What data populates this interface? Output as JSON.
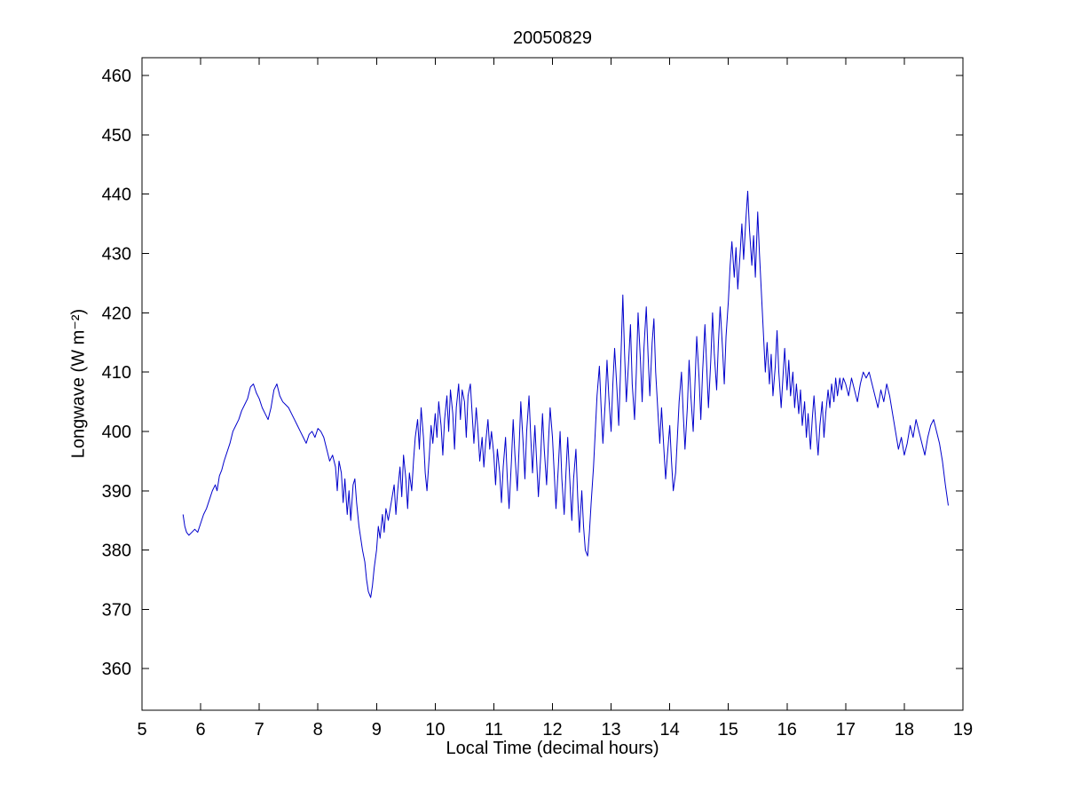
{
  "chart_data": {
    "type": "line",
    "title": "20050829",
    "xlabel": "Local Time (decimal hours)",
    "ylabel": "Longwave (W m⁻²)",
    "xlim": [
      5,
      19
    ],
    "ylim": [
      353,
      463
    ],
    "xticks": [
      5,
      6,
      7,
      8,
      9,
      10,
      11,
      12,
      13,
      14,
      15,
      16,
      17,
      18,
      19
    ],
    "yticks": [
      360,
      370,
      380,
      390,
      400,
      410,
      420,
      430,
      440,
      450,
      460
    ],
    "grid": false,
    "legend": "none",
    "line_color": "#0000CC",
    "series_name": "Longwave irradiance",
    "points": [
      [
        5.7,
        386
      ],
      [
        5.73,
        384
      ],
      [
        5.76,
        383
      ],
      [
        5.8,
        382.5
      ],
      [
        5.85,
        383
      ],
      [
        5.9,
        383.5
      ],
      [
        5.95,
        383
      ],
      [
        6.0,
        384.5
      ],
      [
        6.05,
        386
      ],
      [
        6.1,
        387
      ],
      [
        6.15,
        388.5
      ],
      [
        6.2,
        390
      ],
      [
        6.25,
        391
      ],
      [
        6.28,
        390
      ],
      [
        6.32,
        392.5
      ],
      [
        6.36,
        393.5
      ],
      [
        6.4,
        395
      ],
      [
        6.45,
        396.5
      ],
      [
        6.5,
        398
      ],
      [
        6.55,
        400
      ],
      [
        6.6,
        401
      ],
      [
        6.65,
        402
      ],
      [
        6.7,
        403.5
      ],
      [
        6.75,
        404.5
      ],
      [
        6.8,
        405.5
      ],
      [
        6.85,
        407.5
      ],
      [
        6.9,
        408
      ],
      [
        6.95,
        406.5
      ],
      [
        7.0,
        405.5
      ],
      [
        7.05,
        404
      ],
      [
        7.1,
        403
      ],
      [
        7.15,
        402
      ],
      [
        7.2,
        404
      ],
      [
        7.25,
        407
      ],
      [
        7.3,
        408
      ],
      [
        7.35,
        406
      ],
      [
        7.4,
        405
      ],
      [
        7.45,
        404.5
      ],
      [
        7.5,
        404
      ],
      [
        7.55,
        403
      ],
      [
        7.6,
        402
      ],
      [
        7.65,
        401
      ],
      [
        7.7,
        400
      ],
      [
        7.75,
        399
      ],
      [
        7.8,
        398
      ],
      [
        7.85,
        399.5
      ],
      [
        7.9,
        400
      ],
      [
        7.95,
        399
      ],
      [
        8.0,
        400.5
      ],
      [
        8.05,
        400
      ],
      [
        8.1,
        399
      ],
      [
        8.15,
        397
      ],
      [
        8.2,
        395
      ],
      [
        8.25,
        396
      ],
      [
        8.3,
        394
      ],
      [
        8.33,
        390
      ],
      [
        8.36,
        395
      ],
      [
        8.4,
        393
      ],
      [
        8.43,
        388
      ],
      [
        8.46,
        392
      ],
      [
        8.5,
        386
      ],
      [
        8.53,
        390
      ],
      [
        8.56,
        385
      ],
      [
        8.6,
        391
      ],
      [
        8.63,
        392
      ],
      [
        8.66,
        388
      ],
      [
        8.7,
        384
      ],
      [
        8.73,
        382
      ],
      [
        8.76,
        380
      ],
      [
        8.8,
        378
      ],
      [
        8.83,
        375
      ],
      [
        8.86,
        373
      ],
      [
        8.9,
        372
      ],
      [
        8.93,
        374
      ],
      [
        8.96,
        377
      ],
      [
        9.0,
        380
      ],
      [
        9.03,
        384
      ],
      [
        9.06,
        382
      ],
      [
        9.1,
        386
      ],
      [
        9.13,
        383
      ],
      [
        9.16,
        387
      ],
      [
        9.2,
        385
      ],
      [
        9.25,
        388
      ],
      [
        9.3,
        391
      ],
      [
        9.33,
        386
      ],
      [
        9.36,
        390
      ],
      [
        9.4,
        394
      ],
      [
        9.43,
        389
      ],
      [
        9.46,
        396
      ],
      [
        9.5,
        392
      ],
      [
        9.53,
        387
      ],
      [
        9.56,
        393
      ],
      [
        9.6,
        390
      ],
      [
        9.63,
        395
      ],
      [
        9.66,
        399
      ],
      [
        9.7,
        402
      ],
      [
        9.73,
        397
      ],
      [
        9.76,
        404
      ],
      [
        9.8,
        399
      ],
      [
        9.83,
        393
      ],
      [
        9.86,
        390
      ],
      [
        9.9,
        396
      ],
      [
        9.93,
        401
      ],
      [
        9.96,
        398
      ],
      [
        10.0,
        403
      ],
      [
        10.03,
        399
      ],
      [
        10.06,
        405
      ],
      [
        10.1,
        401
      ],
      [
        10.13,
        396
      ],
      [
        10.16,
        402
      ],
      [
        10.2,
        406
      ],
      [
        10.23,
        400
      ],
      [
        10.26,
        407
      ],
      [
        10.3,
        403
      ],
      [
        10.33,
        397
      ],
      [
        10.36,
        404
      ],
      [
        10.4,
        408
      ],
      [
        10.43,
        402
      ],
      [
        10.46,
        407
      ],
      [
        10.5,
        405
      ],
      [
        10.53,
        399
      ],
      [
        10.56,
        406
      ],
      [
        10.6,
        408
      ],
      [
        10.63,
        403
      ],
      [
        10.66,
        398
      ],
      [
        10.7,
        404
      ],
      [
        10.73,
        400
      ],
      [
        10.76,
        395
      ],
      [
        10.8,
        399
      ],
      [
        10.83,
        394
      ],
      [
        10.86,
        398
      ],
      [
        10.9,
        402
      ],
      [
        10.93,
        397
      ],
      [
        10.96,
        400
      ],
      [
        11.0,
        396
      ],
      [
        11.03,
        391
      ],
      [
        11.06,
        397
      ],
      [
        11.1,
        393
      ],
      [
        11.13,
        388
      ],
      [
        11.16,
        394
      ],
      [
        11.2,
        399
      ],
      [
        11.23,
        392
      ],
      [
        11.26,
        387
      ],
      [
        11.3,
        395
      ],
      [
        11.33,
        402
      ],
      [
        11.36,
        396
      ],
      [
        11.4,
        390
      ],
      [
        11.43,
        397
      ],
      [
        11.46,
        405
      ],
      [
        11.5,
        398
      ],
      [
        11.53,
        392
      ],
      [
        11.56,
        400
      ],
      [
        11.6,
        406
      ],
      [
        11.63,
        399
      ],
      [
        11.66,
        393
      ],
      [
        11.7,
        401
      ],
      [
        11.73,
        395
      ],
      [
        11.76,
        389
      ],
      [
        11.8,
        396
      ],
      [
        11.83,
        403
      ],
      [
        11.86,
        397
      ],
      [
        11.9,
        391
      ],
      [
        11.93,
        398
      ],
      [
        11.96,
        404
      ],
      [
        12.0,
        399
      ],
      [
        12.03,
        393
      ],
      [
        12.06,
        387
      ],
      [
        12.1,
        394
      ],
      [
        12.13,
        400
      ],
      [
        12.16,
        392
      ],
      [
        12.2,
        386
      ],
      [
        12.23,
        393
      ],
      [
        12.26,
        399
      ],
      [
        12.3,
        391
      ],
      [
        12.33,
        385
      ],
      [
        12.36,
        392
      ],
      [
        12.4,
        397
      ],
      [
        12.43,
        389
      ],
      [
        12.46,
        383
      ],
      [
        12.5,
        390
      ],
      [
        12.53,
        384
      ],
      [
        12.56,
        380
      ],
      [
        12.6,
        379
      ],
      [
        12.63,
        383
      ],
      [
        12.66,
        388
      ],
      [
        12.7,
        394
      ],
      [
        12.73,
        400
      ],
      [
        12.76,
        406
      ],
      [
        12.8,
        411
      ],
      [
        12.83,
        404
      ],
      [
        12.86,
        398
      ],
      [
        12.9,
        405
      ],
      [
        12.93,
        412
      ],
      [
        12.96,
        406
      ],
      [
        13.0,
        400
      ],
      [
        13.03,
        408
      ],
      [
        13.06,
        414
      ],
      [
        13.1,
        407
      ],
      [
        13.13,
        401
      ],
      [
        13.16,
        410
      ],
      [
        13.2,
        423
      ],
      [
        13.23,
        413
      ],
      [
        13.26,
        405
      ],
      [
        13.3,
        412
      ],
      [
        13.33,
        418
      ],
      [
        13.36,
        408
      ],
      [
        13.4,
        402
      ],
      [
        13.43,
        410
      ],
      [
        13.46,
        420
      ],
      [
        13.5,
        412
      ],
      [
        13.53,
        405
      ],
      [
        13.56,
        414
      ],
      [
        13.6,
        421
      ],
      [
        13.63,
        413
      ],
      [
        13.66,
        406
      ],
      [
        13.7,
        415
      ],
      [
        13.73,
        419
      ],
      [
        13.76,
        410
      ],
      [
        13.8,
        403
      ],
      [
        13.83,
        398
      ],
      [
        13.86,
        404
      ],
      [
        13.9,
        397
      ],
      [
        13.93,
        392
      ],
      [
        13.96,
        396
      ],
      [
        14.0,
        401
      ],
      [
        14.03,
        395
      ],
      [
        14.06,
        390
      ],
      [
        14.1,
        393
      ],
      [
        14.13,
        399
      ],
      [
        14.16,
        405
      ],
      [
        14.2,
        410
      ],
      [
        14.23,
        403
      ],
      [
        14.26,
        397
      ],
      [
        14.3,
        404
      ],
      [
        14.33,
        412
      ],
      [
        14.36,
        406
      ],
      [
        14.4,
        400
      ],
      [
        14.43,
        408
      ],
      [
        14.46,
        416
      ],
      [
        14.5,
        409
      ],
      [
        14.53,
        402
      ],
      [
        14.56,
        410
      ],
      [
        14.6,
        418
      ],
      [
        14.63,
        411
      ],
      [
        14.66,
        404
      ],
      [
        14.7,
        412
      ],
      [
        14.73,
        420
      ],
      [
        14.76,
        413
      ],
      [
        14.8,
        407
      ],
      [
        14.83,
        415
      ],
      [
        14.86,
        421
      ],
      [
        14.9,
        414
      ],
      [
        14.93,
        408
      ],
      [
        14.96,
        416
      ],
      [
        15.0,
        422
      ],
      [
        15.03,
        428
      ],
      [
        15.06,
        432
      ],
      [
        15.1,
        426
      ],
      [
        15.13,
        431
      ],
      [
        15.16,
        424
      ],
      [
        15.2,
        430
      ],
      [
        15.23,
        435
      ],
      [
        15.26,
        429
      ],
      [
        15.3,
        436
      ],
      [
        15.33,
        440.5
      ],
      [
        15.36,
        434
      ],
      [
        15.4,
        428
      ],
      [
        15.43,
        433
      ],
      [
        15.46,
        426
      ],
      [
        15.5,
        437
      ],
      [
        15.53,
        430
      ],
      [
        15.56,
        424
      ],
      [
        15.6,
        416
      ],
      [
        15.63,
        410
      ],
      [
        15.66,
        415
      ],
      [
        15.7,
        408
      ],
      [
        15.73,
        413
      ],
      [
        15.76,
        406
      ],
      [
        15.8,
        411
      ],
      [
        15.83,
        417
      ],
      [
        15.86,
        410
      ],
      [
        15.9,
        404
      ],
      [
        15.93,
        409
      ],
      [
        15.96,
        414
      ],
      [
        16.0,
        407
      ],
      [
        16.03,
        412
      ],
      [
        16.06,
        406
      ],
      [
        16.1,
        410
      ],
      [
        16.13,
        404
      ],
      [
        16.16,
        408
      ],
      [
        16.2,
        403
      ],
      [
        16.23,
        407
      ],
      [
        16.26,
        401
      ],
      [
        16.3,
        405
      ],
      [
        16.33,
        399
      ],
      [
        16.36,
        403
      ],
      [
        16.4,
        397
      ],
      [
        16.43,
        402
      ],
      [
        16.46,
        406
      ],
      [
        16.5,
        400
      ],
      [
        16.53,
        396
      ],
      [
        16.56,
        401
      ],
      [
        16.6,
        405
      ],
      [
        16.63,
        399
      ],
      [
        16.66,
        403
      ],
      [
        16.7,
        407
      ],
      [
        16.73,
        404
      ],
      [
        16.76,
        408
      ],
      [
        16.8,
        405
      ],
      [
        16.83,
        409
      ],
      [
        16.86,
        406
      ],
      [
        16.9,
        409
      ],
      [
        16.93,
        407
      ],
      [
        16.96,
        409
      ],
      [
        17.0,
        408
      ],
      [
        17.05,
        406
      ],
      [
        17.1,
        409
      ],
      [
        17.15,
        407
      ],
      [
        17.2,
        405
      ],
      [
        17.25,
        408
      ],
      [
        17.3,
        410
      ],
      [
        17.35,
        409
      ],
      [
        17.4,
        410
      ],
      [
        17.45,
        408
      ],
      [
        17.5,
        406
      ],
      [
        17.55,
        404
      ],
      [
        17.6,
        407
      ],
      [
        17.65,
        405
      ],
      [
        17.7,
        408
      ],
      [
        17.75,
        406
      ],
      [
        17.8,
        403
      ],
      [
        17.85,
        400
      ],
      [
        17.9,
        397
      ],
      [
        17.95,
        399
      ],
      [
        18.0,
        396
      ],
      [
        18.05,
        398
      ],
      [
        18.1,
        401
      ],
      [
        18.15,
        399
      ],
      [
        18.2,
        402
      ],
      [
        18.25,
        400
      ],
      [
        18.3,
        398
      ],
      [
        18.35,
        396
      ],
      [
        18.4,
        399
      ],
      [
        18.45,
        401
      ],
      [
        18.5,
        402
      ],
      [
        18.55,
        400
      ],
      [
        18.6,
        398
      ],
      [
        18.65,
        395
      ],
      [
        18.7,
        391
      ],
      [
        18.75,
        387.5
      ]
    ]
  }
}
